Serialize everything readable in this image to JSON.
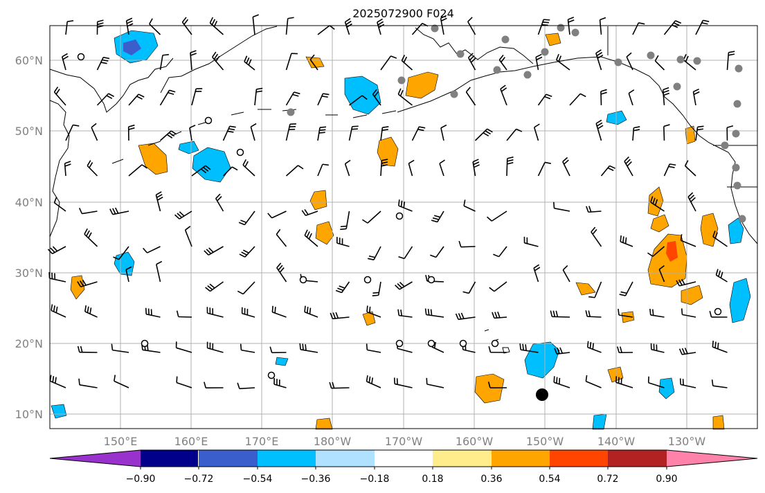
{
  "title": "2025072900 F024",
  "lat_labels": [
    "10°N",
    "20°N",
    "30°N",
    "40°N",
    "50°N",
    "60°N"
  ],
  "lon_labels": [
    "150°E",
    "160°E",
    "170°E",
    "180°W",
    "170°W",
    "160°W",
    "150°W",
    "140°W",
    "130°W"
  ],
  "colorbar": {
    "colors": [
      "#9932cc",
      "#00008b",
      "#3a5fcd",
      "#00bfff",
      "#b0e2ff",
      "#ffffff",
      "#ffec8b",
      "#ffa500",
      "#ff4500",
      "#b22222",
      "#ff82ab"
    ],
    "tick_labels": [
      "−0.90",
      "−0.72",
      "−0.54",
      "−0.36",
      "−0.18",
      "0.18",
      "0.36",
      "0.54",
      "0.72",
      "0.90"
    ]
  },
  "colors": {
    "land_outline": "#000000",
    "grid": "#b0b0b0",
    "axis_label": "#808080",
    "station_dot": "#808080"
  }
}
